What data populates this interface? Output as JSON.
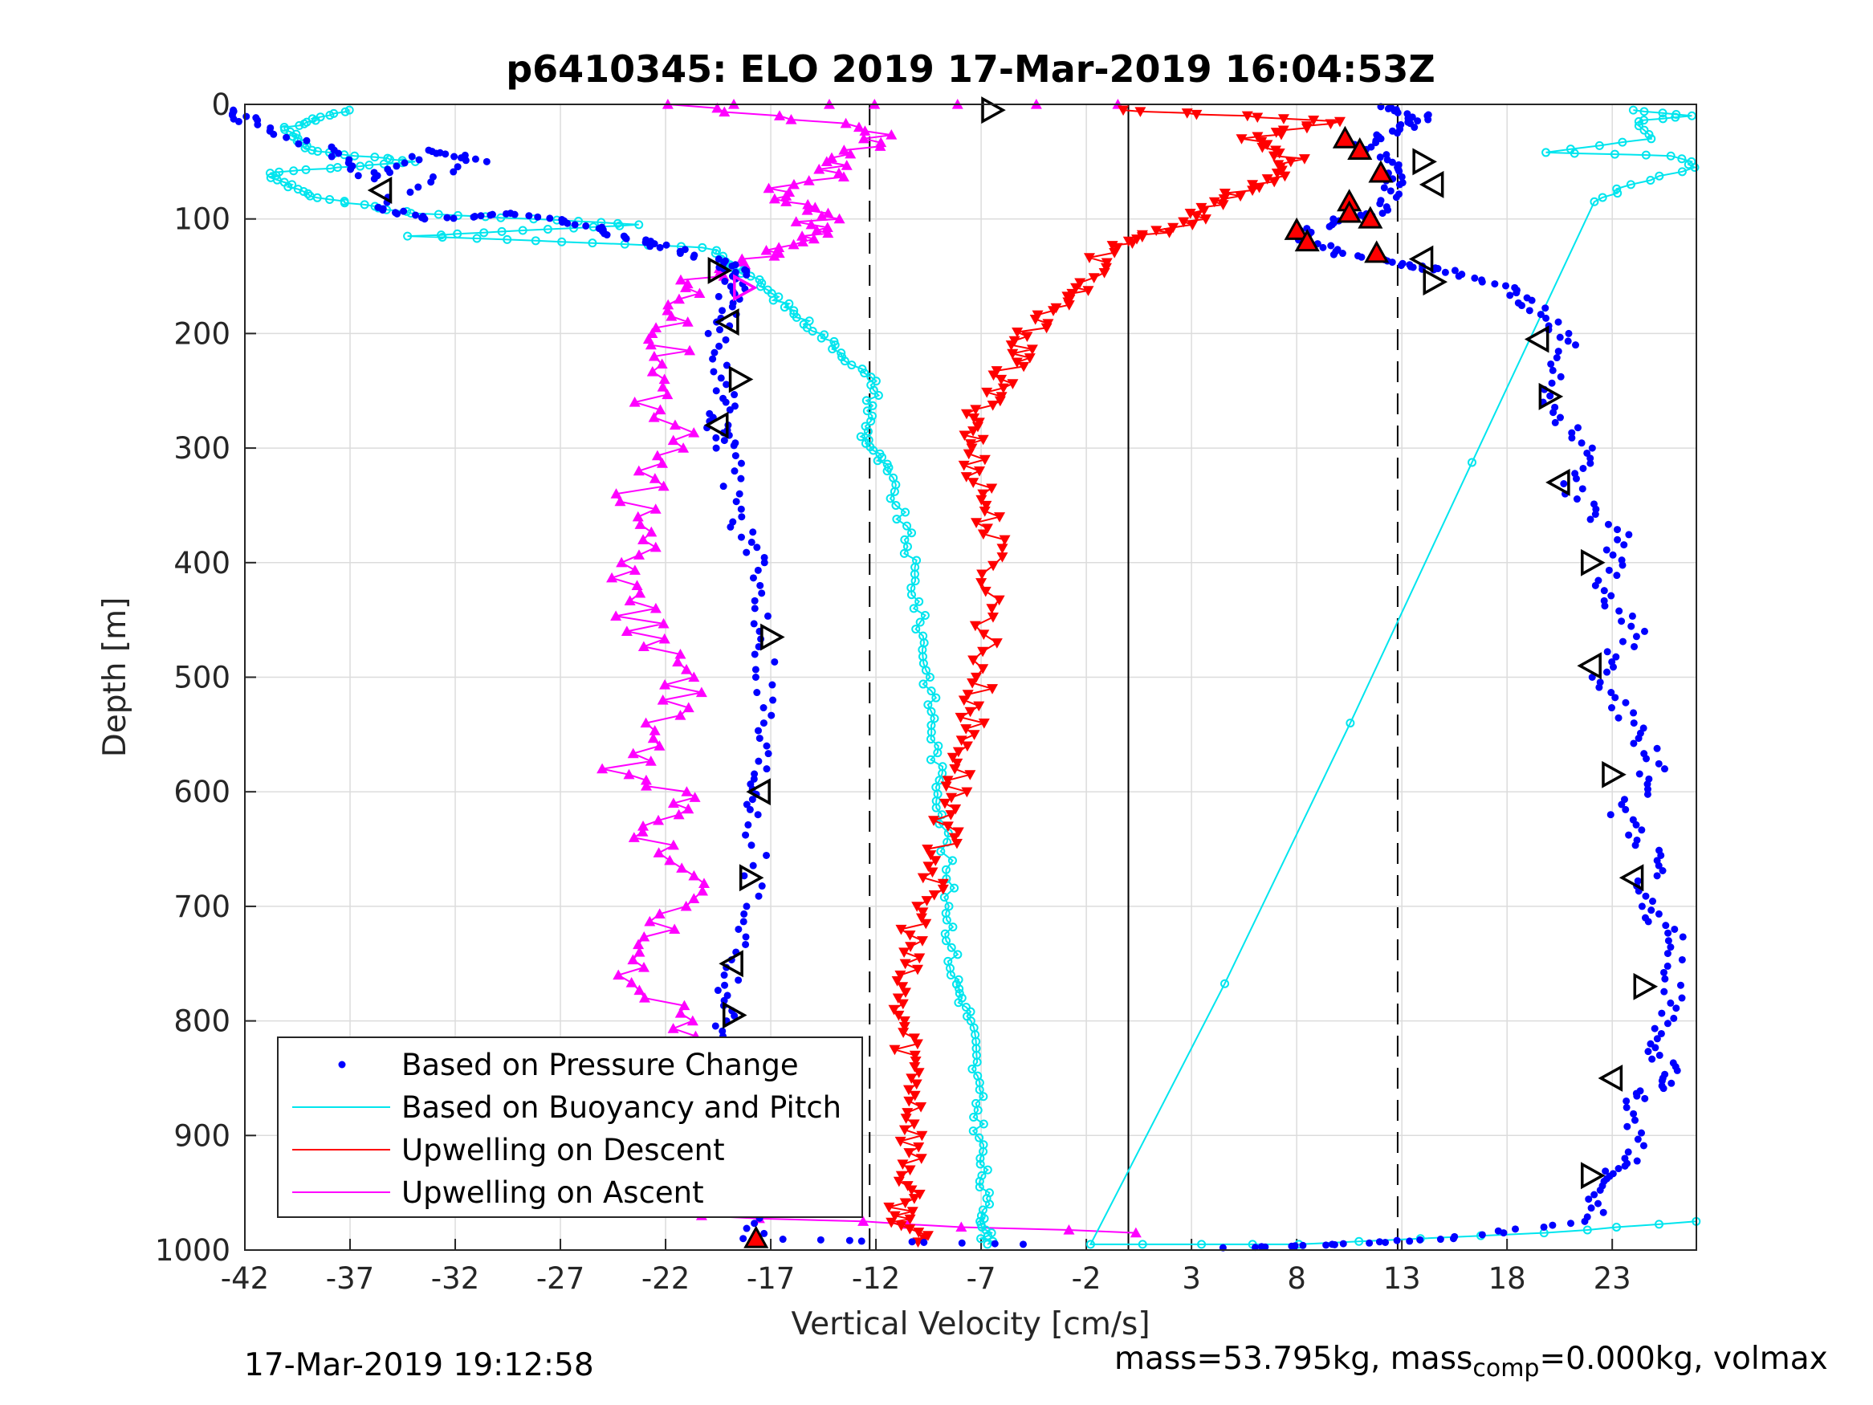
{
  "chart_data": {
    "type": "line",
    "title": "p6410345: ELO 2019 17-Mar-2019 16:04:53Z",
    "xlabel": "Vertical Velocity [cm/s]",
    "ylabel": "Depth [m]",
    "xlim": [
      -42,
      27
    ],
    "ylim": [
      0,
      1000
    ],
    "y_reversed": true,
    "grid": true,
    "legend_position": "bottom-left",
    "x_ticks": [
      "-42",
      "-37",
      "-32",
      "-27",
      "-22",
      "-17",
      "-12",
      "-7",
      "-2",
      "3",
      "8",
      "13",
      "18",
      "23"
    ],
    "y_ticks": [
      "0",
      "100",
      "200",
      "300",
      "400",
      "500",
      "600",
      "700",
      "800",
      "900",
      "1000"
    ],
    "reference_lines": {
      "solid_x": 0,
      "dashed_x": [
        -12.3,
        12.8
      ]
    },
    "series": [
      {
        "name": "Based on Pressure Change",
        "color": "#0000ff",
        "style": "dots",
        "descent": [
          [
            -42,
            5
          ],
          [
            -42,
            15
          ],
          [
            -38,
            40
          ],
          [
            -36,
            65
          ],
          [
            -33,
            40
          ],
          [
            -31,
            50
          ],
          [
            -36,
            90
          ],
          [
            -33,
            100
          ],
          [
            -29,
            95
          ],
          [
            -26,
            105
          ],
          [
            -24,
            115
          ],
          [
            -22,
            125
          ],
          [
            -19,
            140
          ],
          [
            -18.5,
            150
          ],
          [
            -19,
            170
          ],
          [
            -19.5,
            200
          ],
          [
            -19,
            250
          ],
          [
            -19.5,
            280
          ],
          [
            -19,
            300
          ],
          [
            -18.5,
            360
          ],
          [
            -17.8,
            400
          ],
          [
            -17.2,
            460
          ],
          [
            -17.2,
            520
          ],
          [
            -17.5,
            580
          ],
          [
            -17.6,
            620
          ],
          [
            -17.8,
            700
          ],
          [
            -18.8,
            760
          ],
          [
            -19.2,
            800
          ],
          [
            -18,
            840
          ],
          [
            -18.3,
            900
          ],
          [
            -18.5,
            950
          ],
          [
            -17.8,
            990
          ],
          [
            -5,
            995
          ]
        ],
        "ascent": [
          [
            5,
            998
          ],
          [
            10,
            995
          ],
          [
            15,
            990
          ],
          [
            22,
            975
          ],
          [
            22.5,
            940
          ],
          [
            24,
            920
          ],
          [
            24,
            870
          ],
          [
            26,
            850
          ],
          [
            24.5,
            820
          ],
          [
            26,
            780
          ],
          [
            26,
            730
          ],
          [
            24.5,
            700
          ],
          [
            25,
            660
          ],
          [
            23.5,
            620
          ],
          [
            25,
            580
          ],
          [
            24,
            540
          ],
          [
            22.5,
            500
          ],
          [
            24,
            460
          ],
          [
            22.5,
            420
          ],
          [
            23.5,
            380
          ],
          [
            21,
            340
          ],
          [
            22,
            300
          ],
          [
            20,
            260
          ],
          [
            21,
            210
          ],
          [
            19.5,
            180
          ],
          [
            18,
            160
          ],
          [
            15,
            145
          ],
          [
            13,
            140
          ],
          [
            10,
            130
          ],
          [
            8,
            115
          ],
          [
            10,
            100
          ],
          [
            12,
            95
          ],
          [
            12.5,
            70
          ],
          [
            13,
            55
          ],
          [
            11,
            35
          ],
          [
            13,
            20
          ],
          [
            14,
            10
          ],
          [
            12,
            2
          ]
        ]
      },
      {
        "name": "Based on Buoyancy and Pitch",
        "color": "#00e5ee",
        "style": "line-with-circles",
        "descent": [
          [
            -37,
            5
          ],
          [
            -40,
            20
          ],
          [
            -39,
            40
          ],
          [
            -34,
            50
          ],
          [
            -41,
            60
          ],
          [
            -39,
            80
          ],
          [
            -34,
            95
          ],
          [
            -23,
            105
          ],
          [
            -34,
            115
          ],
          [
            -20,
            125
          ],
          [
            -18,
            150
          ],
          [
            -16,
            180
          ],
          [
            -14,
            210
          ],
          [
            -12,
            245
          ],
          [
            -12.5,
            290
          ],
          [
            -11.5,
            320
          ],
          [
            -10.5,
            380
          ],
          [
            -10,
            440
          ],
          [
            -9.5,
            500
          ],
          [
            -9.2,
            560
          ],
          [
            -8.8,
            620
          ],
          [
            -8.5,
            700
          ],
          [
            -8.3,
            760
          ],
          [
            -7.5,
            800
          ],
          [
            -7.2,
            860
          ],
          [
            -7,
            920
          ],
          [
            -6.8,
            970
          ],
          [
            -6.7,
            995
          ]
        ],
        "ascent": [
          [
            27,
            975
          ],
          [
            20,
            985
          ],
          [
            8,
            995
          ],
          [
            -1.5,
            995
          ],
          [
            22,
            85
          ],
          [
            24,
            70
          ],
          [
            27,
            55
          ],
          [
            26,
            45
          ],
          [
            20,
            42
          ],
          [
            25,
            30
          ],
          [
            24,
            15
          ],
          [
            27,
            10
          ],
          [
            24,
            5
          ]
        ]
      },
      {
        "name": "Upwelling on Descent",
        "color": "#ff0000",
        "style": "line-with-down-triangles",
        "values": [
          [
            0,
            5
          ],
          [
            10,
            15
          ],
          [
            6,
            30
          ],
          [
            8,
            50
          ],
          [
            6,
            70
          ],
          [
            4,
            90
          ],
          [
            2,
            110
          ],
          [
            -1,
            125
          ],
          [
            -2,
            160
          ],
          [
            -4,
            180
          ],
          [
            -5,
            210
          ],
          [
            -6,
            240
          ],
          [
            -7,
            270
          ],
          [
            -7.5,
            300
          ],
          [
            -6.8,
            340
          ],
          [
            -6.5,
            380
          ],
          [
            -6.5,
            440
          ],
          [
            -7,
            500
          ],
          [
            -7.5,
            540
          ],
          [
            -8,
            580
          ],
          [
            -8.5,
            620
          ],
          [
            -9,
            660
          ],
          [
            -9.8,
            700
          ],
          [
            -10.5,
            740
          ],
          [
            -11,
            780
          ],
          [
            -10.5,
            820
          ],
          [
            -10,
            860
          ],
          [
            -10.2,
            900
          ],
          [
            -10.5,
            940
          ],
          [
            -10.8,
            970
          ],
          [
            -10,
            993
          ]
        ]
      },
      {
        "name": "Upwelling on Ascent",
        "color": "#ff00ff",
        "style": "line-with-up-triangles",
        "values": [
          [
            -0.5,
            985
          ],
          [
            -20,
            970
          ],
          [
            -21,
            940
          ],
          [
            -24,
            920
          ],
          [
            -22,
            880
          ],
          [
            -23,
            840
          ],
          [
            -21,
            800
          ],
          [
            -24,
            760
          ],
          [
            -22,
            720
          ],
          [
            -21,
            680
          ],
          [
            -23,
            640
          ],
          [
            -21,
            610
          ],
          [
            -24,
            580
          ],
          [
            -22,
            540
          ],
          [
            -21,
            500
          ],
          [
            -23,
            460
          ],
          [
            -24,
            420
          ],
          [
            -22,
            380
          ],
          [
            -23.5,
            340
          ],
          [
            -21,
            300
          ],
          [
            -23,
            260
          ],
          [
            -21.5,
            220
          ],
          [
            -22,
            190
          ],
          [
            -21,
            160
          ],
          [
            -19,
            140
          ],
          [
            -16.5,
            125
          ],
          [
            -15,
            110
          ],
          [
            -14.5,
            95
          ],
          [
            -17,
            80
          ],
          [
            -14,
            60
          ],
          [
            -13,
            40
          ],
          [
            -12,
            20
          ],
          [
            -22,
            0
          ],
          [
            -0.5,
            0
          ]
        ]
      }
    ],
    "markers": {
      "open_triangles_black": [
        [
          -6.5,
          5
        ],
        [
          -35.5,
          75
        ],
        [
          14,
          50
        ],
        [
          14.5,
          70
        ],
        [
          -19.5,
          145
        ],
        [
          -19,
          190
        ],
        [
          -18.5,
          240
        ],
        [
          -19.5,
          280
        ],
        [
          -17,
          465
        ],
        [
          -17.5,
          600
        ],
        [
          -18,
          675
        ],
        [
          -18.8,
          750
        ],
        [
          -18.8,
          795
        ],
        [
          14,
          135
        ],
        [
          14.5,
          155
        ],
        [
          19.5,
          205
        ],
        [
          20,
          255
        ],
        [
          20.5,
          330
        ],
        [
          22,
          400
        ],
        [
          22,
          490
        ],
        [
          23,
          585
        ],
        [
          24,
          675
        ],
        [
          24.5,
          770
        ],
        [
          23,
          850
        ],
        [
          22,
          935
        ]
      ],
      "open_triangles_magenta": [
        [
          -18.3,
          160
        ]
      ],
      "filled_triangles_red": [
        [
          10.3,
          30
        ],
        [
          11,
          40
        ],
        [
          12,
          60
        ],
        [
          10.5,
          85
        ],
        [
          10.5,
          95
        ],
        [
          11.5,
          100
        ],
        [
          8,
          110
        ],
        [
          8.5,
          120
        ],
        [
          11.8,
          130
        ],
        [
          -17.7,
          990
        ]
      ]
    }
  },
  "footer": {
    "timestamp": "17-Mar-2019 19:12:58",
    "mass_text_1": "mass=53.795kg, mass",
    "mass_sub": "comp",
    "mass_text_2": "=0.000kg, volmax"
  }
}
